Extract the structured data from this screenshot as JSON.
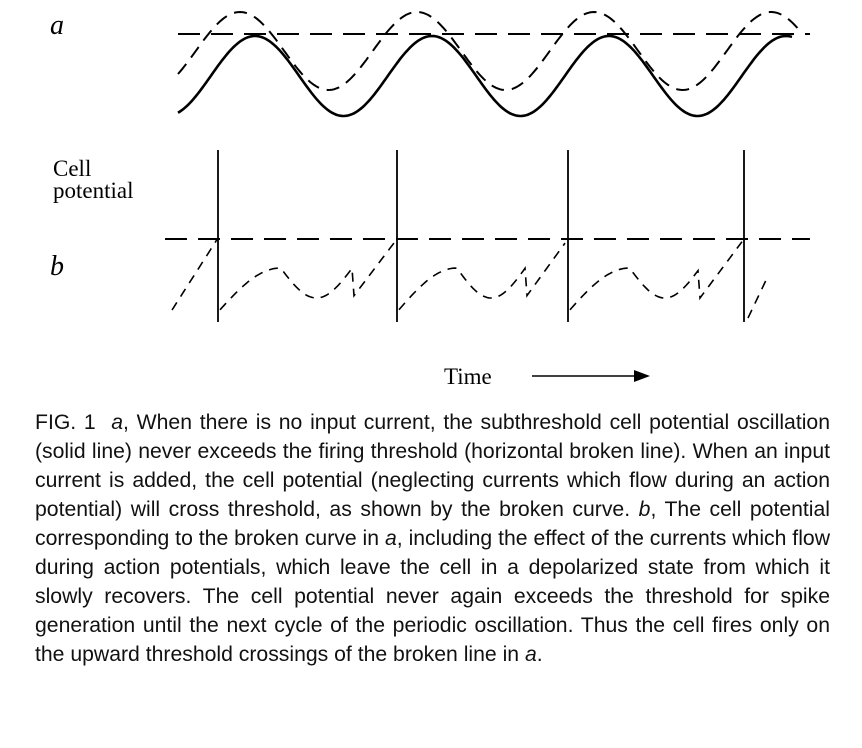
{
  "figure": {
    "panel_a_label": "a",
    "panel_b_label": "b",
    "y_label_line1": "Cell",
    "y_label_line2": "potential",
    "x_label": "Time"
  },
  "caption": {
    "fig_number": "FIG. 1",
    "text_a_label": "a",
    "text_1": ", When there is no input current, the subthreshold cell potential oscillation (solid line) never exceeds the firing threshold (horizontal broken line). When an input current is added, the cell potential (neglecting currents which flow during an action potential) will cross threshold, as shown by the broken curve. ",
    "text_b_label": "b",
    "text_2": ", The cell potential corresponding to the broken curve in ",
    "text_a_ref": "a",
    "text_3": ", including the effect of the currents which flow during action potentials, which leave the cell in a depolarized state from which it slowly recovers. The cell potential never again exceeds the threshold for spike generation until the next cycle of the periodic oscillation. Thus the cell fires only on the upward threshold crossings of the broken line in ",
    "text_a_end": "a",
    "text_end": "."
  }
}
